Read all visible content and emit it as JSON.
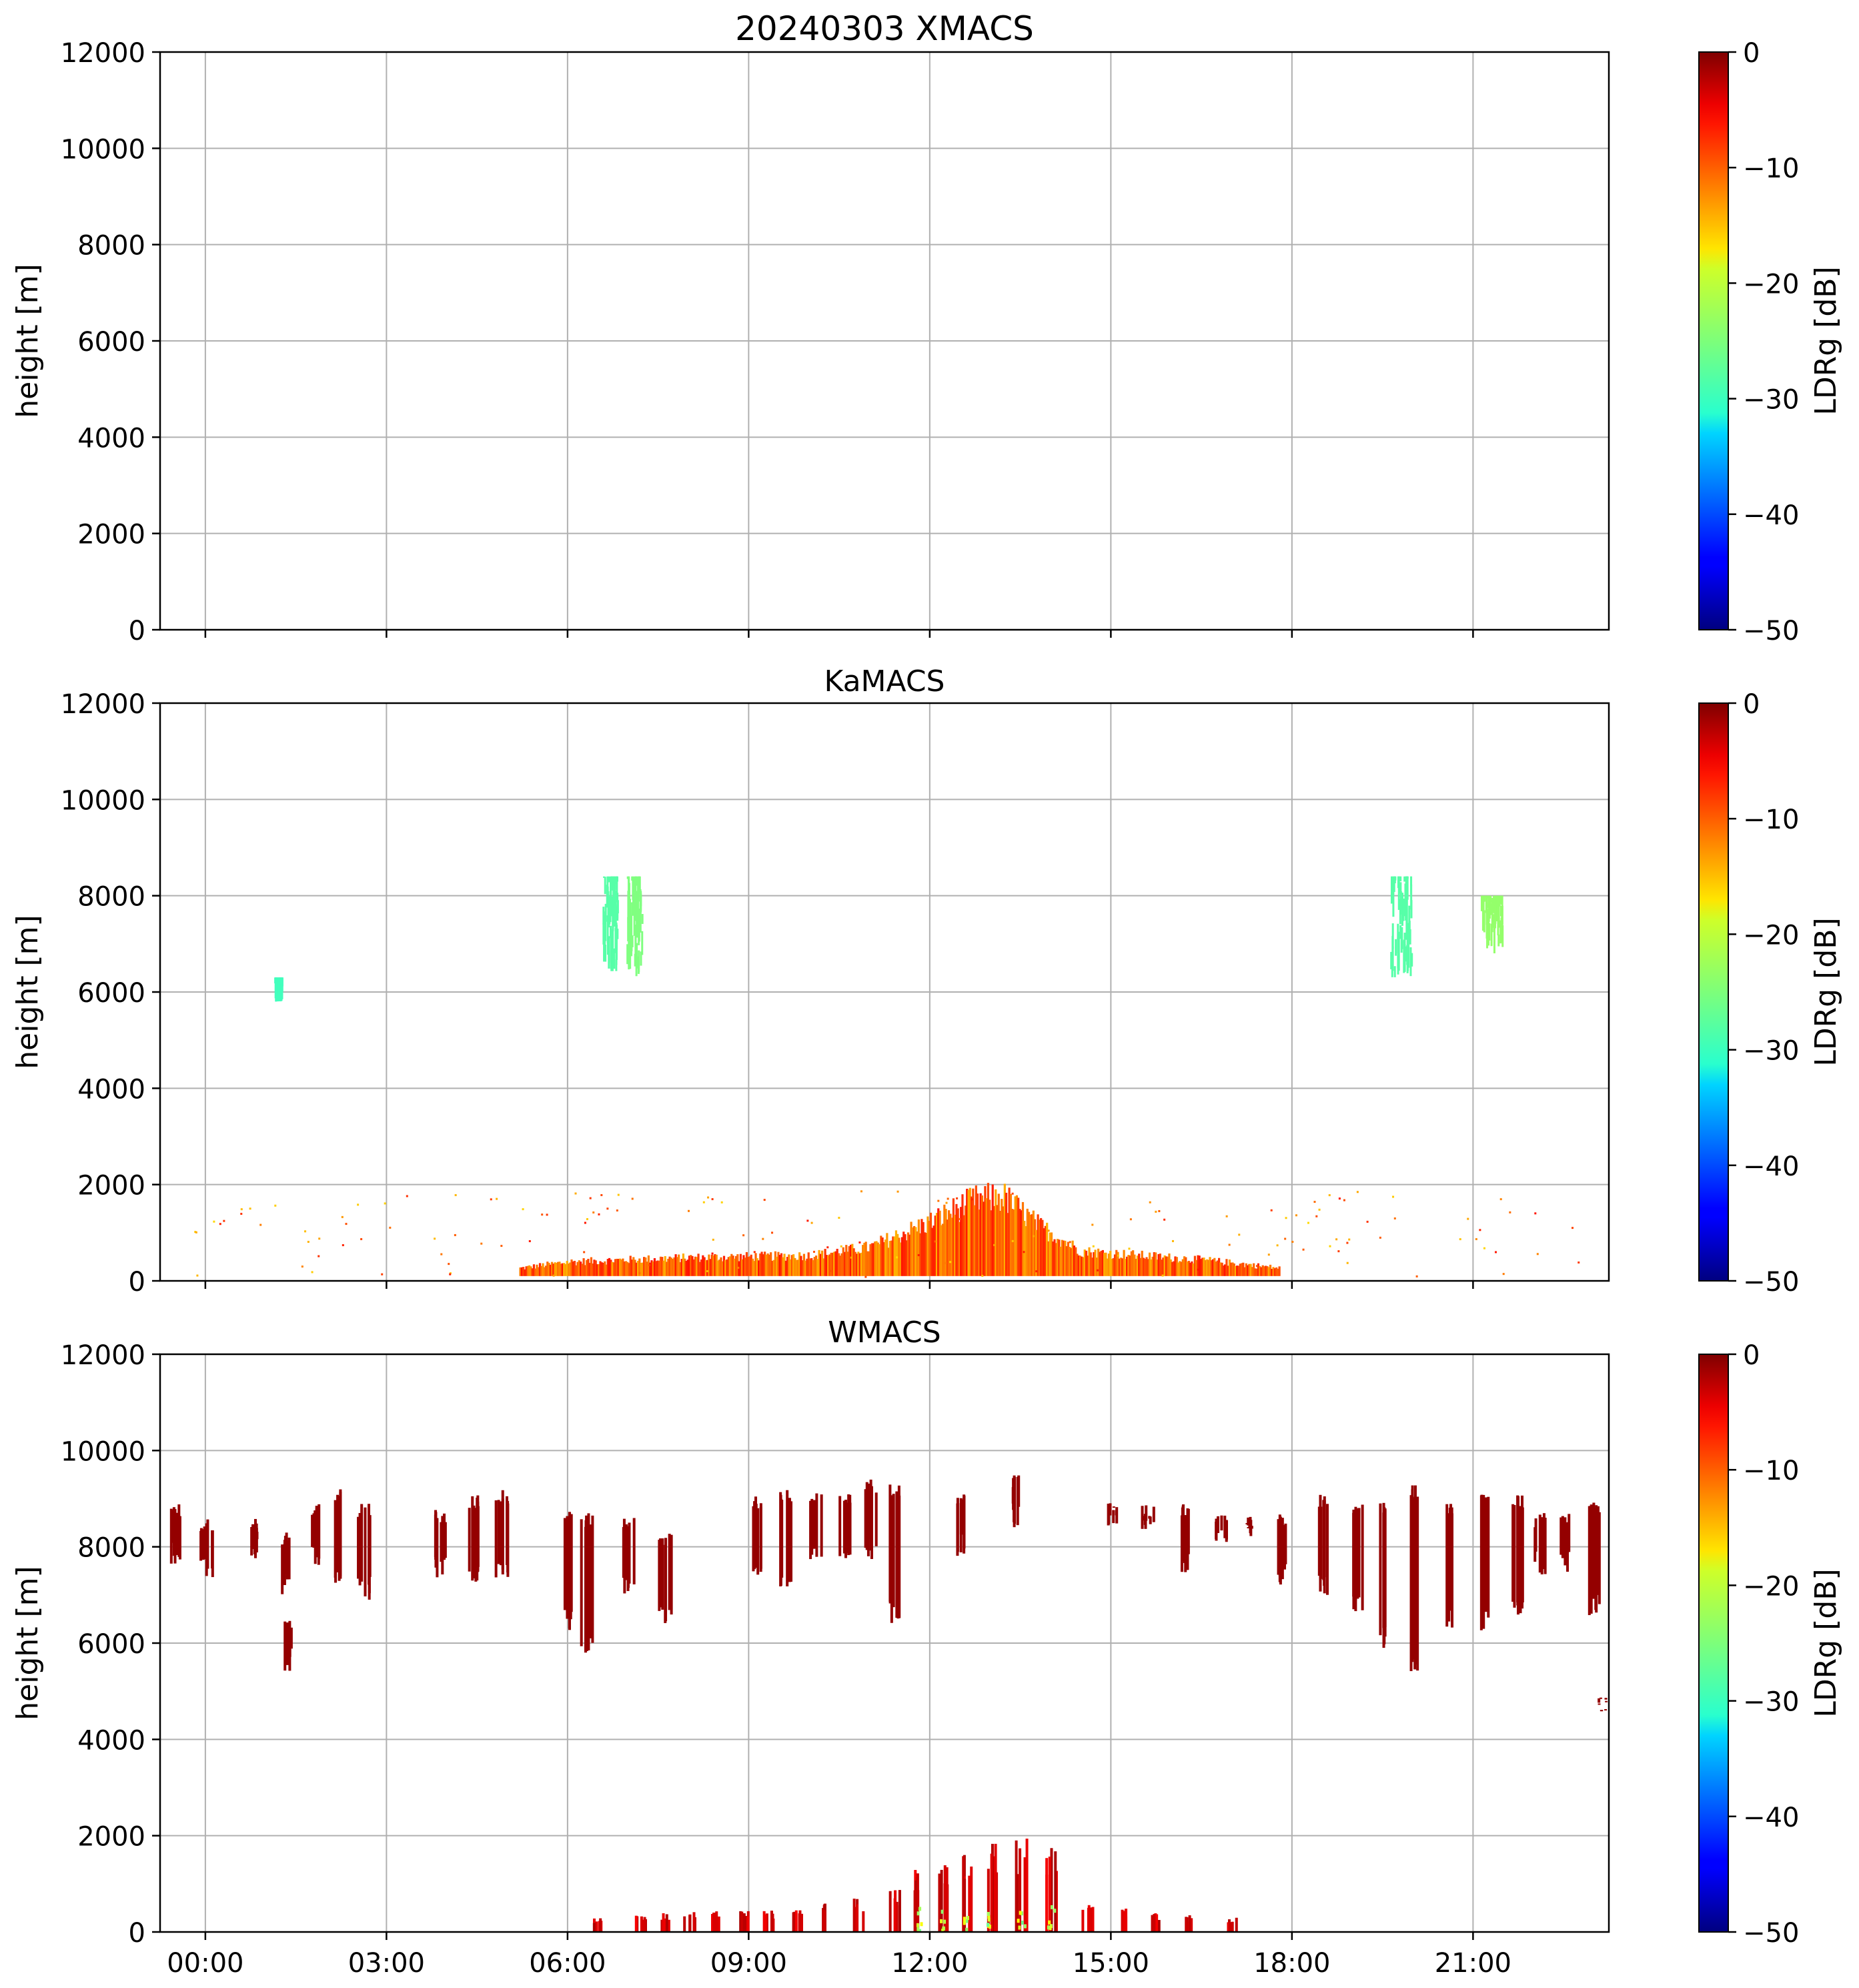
{
  "figure": {
    "date_title": "20240303 XMACS"
  },
  "chart_data": [
    {
      "type": "heatmap",
      "title": "20240303 XMACS",
      "ylabel": "height [m]",
      "ylim": [
        0,
        12000
      ],
      "yticks": [
        "0",
        "2000",
        "4000",
        "6000",
        "8000",
        "10000",
        "12000"
      ],
      "xticks": [
        "00:00",
        "03:00",
        "06:00",
        "09:00",
        "12:00",
        "15:00",
        "18:00",
        "21:00"
      ],
      "xlim_hours": [
        -0.75,
        23.25
      ],
      "grid": true,
      "colorbar": {
        "label": "LDRg [dB]",
        "ticks": [
          "0",
          "−10",
          "−20",
          "−30",
          "−40",
          "−50"
        ],
        "range": [
          -50,
          0
        ],
        "colormap": "jet"
      },
      "features": []
    },
    {
      "type": "heatmap",
      "title": "KaMACS",
      "ylabel": "height [m]",
      "ylim": [
        0,
        12000
      ],
      "yticks": [
        "0",
        "2000",
        "4000",
        "6000",
        "8000",
        "10000",
        "12000"
      ],
      "xticks": [
        "00:00",
        "03:00",
        "06:00",
        "09:00",
        "12:00",
        "15:00",
        "18:00",
        "21:00"
      ],
      "xlim_hours": [
        -0.75,
        23.25
      ],
      "grid": true,
      "colorbar": {
        "label": "LDRg [dB]",
        "ticks": [
          "0",
          "−10",
          "−20",
          "−30",
          "−40",
          "−50"
        ],
        "range": [
          -50,
          0
        ],
        "colormap": "jet"
      },
      "features": [
        {
          "kind": "boundary_layer",
          "t_start": 5.2,
          "t_end": 17.8,
          "profile": [
            [
              5.2,
              0.3
            ],
            [
              6.0,
              0.45
            ],
            [
              8.0,
              0.55
            ],
            [
              10.0,
              0.6
            ],
            [
              11.0,
              0.8
            ],
            [
              12.0,
              1.4
            ],
            [
              12.7,
              1.9
            ],
            [
              13.2,
              2.0
            ],
            [
              13.8,
              1.3
            ],
            [
              14.5,
              0.7
            ],
            [
              16.5,
              0.5
            ],
            [
              17.8,
              0.3
            ]
          ],
          "ldr_db": -11
        },
        {
          "kind": "cirrus",
          "t_center": 1.2,
          "h_top": 6300,
          "h_bottom": 5800,
          "width_h": 0.12,
          "ldr_db": -28
        },
        {
          "kind": "cirrus",
          "t_center": 6.7,
          "h_top": 8400,
          "h_bottom": 6400,
          "width_h": 0.25,
          "ldr_db": -27
        },
        {
          "kind": "cirrus",
          "t_center": 7.1,
          "h_top": 8400,
          "h_bottom": 6300,
          "width_h": 0.25,
          "ldr_db": -25
        },
        {
          "kind": "cirrus",
          "t_center": 19.8,
          "h_top": 8400,
          "h_bottom": 6300,
          "width_h": 0.35,
          "ldr_db": -27
        },
        {
          "kind": "cirrus",
          "t_center": 21.3,
          "h_top": 8000,
          "h_bottom": 6800,
          "width_h": 0.35,
          "ldr_db": -24
        }
      ]
    },
    {
      "type": "heatmap",
      "title": "WMACS",
      "ylabel": "height [m]",
      "ylim": [
        0,
        12000
      ],
      "yticks": [
        "0",
        "2000",
        "4000",
        "6000",
        "8000",
        "10000",
        "12000"
      ],
      "xticks": [
        "00:00",
        "03:00",
        "06:00",
        "09:00",
        "12:00",
        "15:00",
        "18:00",
        "21:00"
      ],
      "xlim_hours": [
        -0.75,
        23.25
      ],
      "grid": true,
      "colorbar": {
        "label": "LDRg [dB]",
        "ticks": [
          "0",
          "−10",
          "−20",
          "−30",
          "−40",
          "−50"
        ],
        "range": [
          -50,
          0
        ],
        "colormap": "jet"
      },
      "features": [
        {
          "kind": "cirrus_band",
          "ldr_db": -1,
          "columns": [
            [
              -0.55,
              8900,
              7600
            ],
            [
              0.0,
              8600,
              7300
            ],
            [
              0.8,
              8600,
              7700
            ],
            [
              1.3,
              8300,
              7000
            ],
            [
              1.8,
              8900,
              7600
            ],
            [
              2.2,
              9200,
              7200
            ],
            [
              2.6,
              8900,
              6900
            ],
            [
              3.9,
              8800,
              7300
            ],
            [
              4.4,
              9100,
              7200
            ],
            [
              4.9,
              9200,
              7300
            ],
            [
              6.0,
              8800,
              6200
            ],
            [
              6.3,
              8700,
              5800
            ],
            [
              7.0,
              8600,
              7000
            ],
            [
              7.6,
              8300,
              6400
            ],
            [
              9.1,
              9100,
              7300
            ],
            [
              9.6,
              9200,
              7100
            ],
            [
              10.1,
              9200,
              7700
            ],
            [
              10.6,
              9200,
              7600
            ],
            [
              11.0,
              9400,
              7700
            ],
            [
              11.4,
              9300,
              6400
            ],
            [
              12.5,
              9100,
              7800
            ],
            [
              13.4,
              9500,
              8400
            ],
            [
              15.0,
              9000,
              8400
            ],
            [
              15.6,
              8900,
              8100
            ],
            [
              16.2,
              8900,
              7400
            ],
            [
              16.8,
              8700,
              8100
            ],
            [
              17.3,
              8700,
              8200
            ],
            [
              17.8,
              8700,
              7200
            ],
            [
              18.5,
              9100,
              6900
            ],
            [
              19.1,
              8900,
              6500
            ],
            [
              19.5,
              9000,
              5900
            ],
            [
              20.0,
              9300,
              5300
            ],
            [
              20.6,
              8900,
              6300
            ],
            [
              21.2,
              9200,
              6200
            ],
            [
              21.7,
              9100,
              6500
            ],
            [
              22.1,
              8700,
              7400
            ],
            [
              22.5,
              8700,
              7400
            ],
            [
              23.0,
              9000,
              6500
            ],
            [
              1.35,
              6500,
              5400
            ],
            [
              23.1,
              4900,
              4700
            ]
          ]
        },
        {
          "kind": "boundary_layer_columns",
          "ldr_db": -2,
          "columns": [
            [
              6.5,
              300
            ],
            [
              7.2,
              350
            ],
            [
              7.6,
              400
            ],
            [
              8.0,
              450
            ],
            [
              8.4,
              450
            ],
            [
              8.9,
              500
            ],
            [
              9.3,
              450
            ],
            [
              9.8,
              500
            ],
            [
              10.3,
              600
            ],
            [
              10.8,
              700
            ],
            [
              11.4,
              900
            ],
            [
              11.8,
              1300
            ],
            [
              12.2,
              1500
            ],
            [
              12.6,
              1700
            ],
            [
              13.0,
              1900
            ],
            [
              13.5,
              2000
            ],
            [
              14.0,
              1800
            ],
            [
              14.6,
              600
            ],
            [
              15.2,
              500
            ],
            [
              15.7,
              400
            ],
            [
              16.3,
              350
            ],
            [
              17.0,
              300
            ]
          ]
        }
      ]
    }
  ]
}
